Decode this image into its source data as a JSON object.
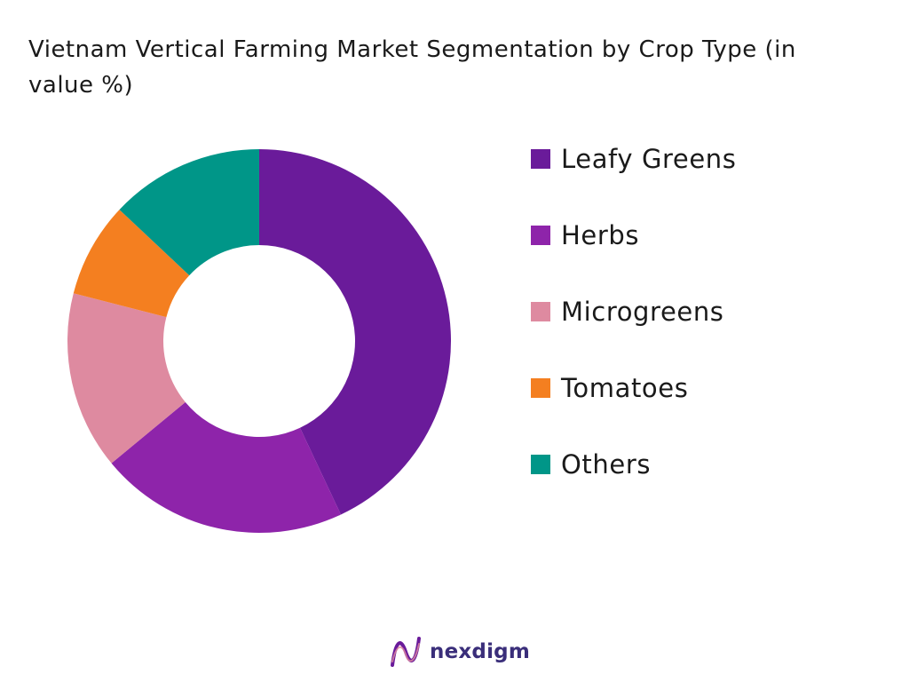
{
  "chart_data": {
    "type": "pie",
    "donut": true,
    "title": "Vietnam Vertical Farming Market Segmentation by Crop Type (in value %)",
    "categories": [
      "Leafy Greens",
      "Herbs",
      "Microgreens",
      "Tomatoes",
      "Others"
    ],
    "values": [
      43,
      21,
      15,
      8,
      13
    ],
    "colors": [
      "#6a1b9a",
      "#8e24aa",
      "#de8aa0",
      "#f47f20",
      "#009688"
    ],
    "legend_position": "right"
  },
  "brand": {
    "name": "nexdigm",
    "logo_icon": "nexdigm-wave-logo-icon",
    "logo_colors": [
      "#6a1b9a",
      "#de8aa0"
    ]
  }
}
